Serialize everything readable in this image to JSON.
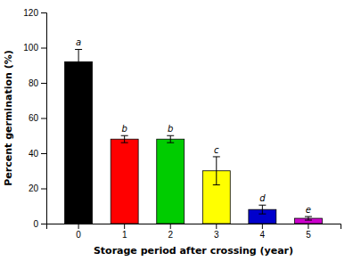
{
  "chart_data": {
    "type": "bar",
    "categories": [
      "0",
      "1",
      "2",
      "3",
      "4",
      "5"
    ],
    "values": [
      92,
      48,
      48,
      30,
      8,
      3
    ],
    "errors": [
      7,
      2,
      2,
      8,
      2.5,
      1
    ],
    "colors": [
      "#000000",
      "#ff0000",
      "#00cc00",
      "#ffff00",
      "#0000cc",
      "#cc00cc"
    ],
    "annotations": [
      "a",
      "b",
      "b",
      "c",
      "d",
      "e"
    ],
    "xlabel": "Storage period after crossing (year)",
    "ylabel": "Percent germination (%)",
    "ylim": [
      0,
      120
    ],
    "yticks": [
      0,
      20,
      40,
      60,
      80,
      100,
      120
    ],
    "grid": false
  }
}
